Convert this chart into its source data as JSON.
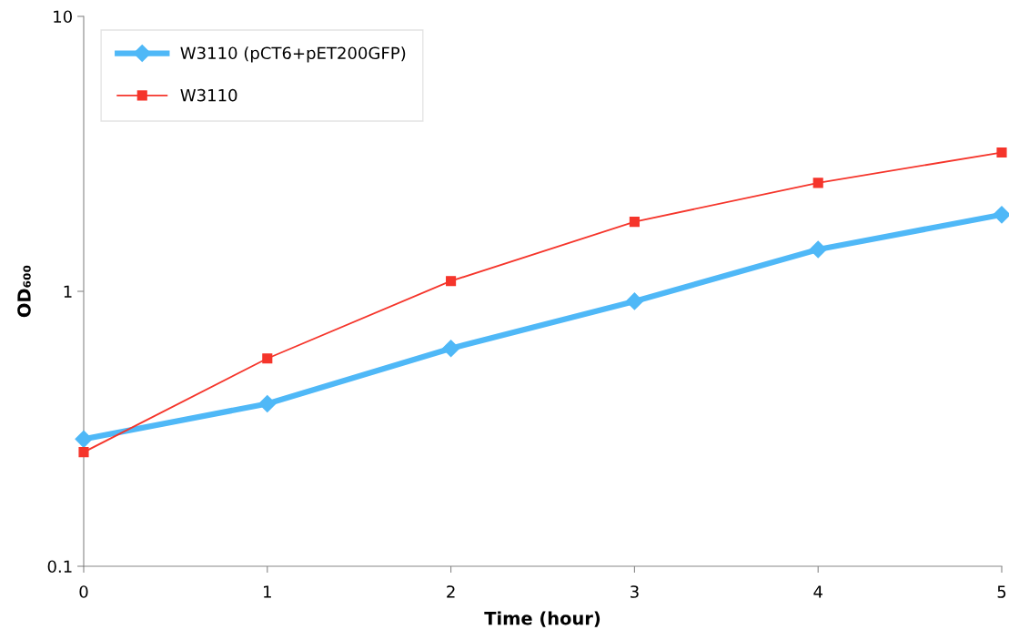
{
  "chart_data": {
    "type": "line",
    "xlabel": "Time (hour)",
    "ylabel": "OD₆₀₀",
    "log": "y",
    "x": [
      0,
      1,
      2,
      3,
      4,
      5
    ],
    "series": [
      {
        "name": "W3110 (pCT6+pET200GFP)",
        "color": "#4fb8f7",
        "marker": "diamond",
        "values": [
          0.29,
          0.39,
          0.62,
          0.92,
          1.42,
          1.9
        ]
      },
      {
        "name": "W3110",
        "color": "#f5352b",
        "marker": "square",
        "values": [
          0.26,
          0.57,
          1.09,
          1.79,
          2.48,
          3.2
        ]
      }
    ],
    "xlim": [
      0,
      5
    ],
    "xticks": [
      0,
      1,
      2,
      3,
      4,
      5
    ],
    "ylim": [
      0.1,
      10
    ],
    "yticks": [
      {
        "value": 0.1,
        "label": "0.1"
      },
      {
        "value": 1,
        "label": "1"
      },
      {
        "value": 10,
        "label": "10"
      }
    ],
    "grid": false,
    "legend": "top left",
    "line_style": "solid"
  }
}
